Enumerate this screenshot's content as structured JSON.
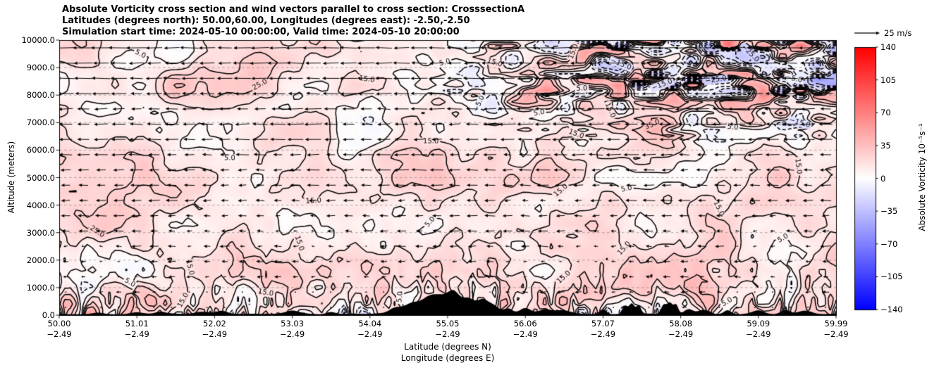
{
  "header": {
    "title_line1": "Absolute Vorticity cross section and wind vectors parallel to cross section: CrosssectionA",
    "title_line2": "Latitudes (degrees north): 50.00,60.00, Longitudes (degrees east): -2.50,-2.50",
    "title_line3": "Simulation start time: 2024-05-10 00:00:00, Valid time: 2024-05-10 20:00:00"
  },
  "chart_data": {
    "type": "heatmap",
    "subtype": "vertical-cross-section with filled vorticity shading, labeled contour lines and wind vectors",
    "title": "Absolute Vorticity cross section and wind vectors parallel to cross section: CrosssectionA",
    "xlabel_line1": "Latitude (degrees N)",
    "xlabel_line2": "Longitude (degrees E)",
    "ylabel": "Altitude (meters)",
    "x_range_lat": [
      50.0,
      59.99
    ],
    "y_range_m": [
      0,
      10000
    ],
    "grid": "horizontal dashed gray gridlines at each 1000 m",
    "x_ticks": [
      {
        "lat": "50.00",
        "lon": "−2.49"
      },
      {
        "lat": "51.01",
        "lon": "−2.49"
      },
      {
        "lat": "52.02",
        "lon": "−2.49"
      },
      {
        "lat": "53.03",
        "lon": "−2.49"
      },
      {
        "lat": "54.04",
        "lon": "−2.49"
      },
      {
        "lat": "55.05",
        "lon": "−2.49"
      },
      {
        "lat": "56.06",
        "lon": "−2.49"
      },
      {
        "lat": "57.07",
        "lon": "−2.49"
      },
      {
        "lat": "58.08",
        "lon": "−2.49"
      },
      {
        "lat": "59.09",
        "lon": "−2.49"
      },
      {
        "lat": "59.99",
        "lon": "−2.49"
      }
    ],
    "y_ticks": [
      "0.0",
      "1000.0",
      "2000.0",
      "3000.0",
      "4000.0",
      "5000.0",
      "6000.0",
      "7000.0",
      "8000.0",
      "9000.0",
      "10000.0"
    ],
    "colorbar": {
      "label": "Absolute Vorticity 10⁻⁵s⁻¹",
      "ticks": [
        "140",
        "105",
        "70",
        "35",
        "0",
        "−35",
        "−70",
        "−105",
        "−140"
      ],
      "tick_values": [
        140,
        105,
        70,
        35,
        0,
        -35,
        -70,
        -105,
        -140
      ],
      "vmin": -140,
      "vmax": 140,
      "colormap": "blue-white-red",
      "color_neg": "#0000ff",
      "color_zero": "#ffffff",
      "color_pos": "#ff0000",
      "position": "right"
    },
    "quiver_key": {
      "label": "25 m/s",
      "speed": 25
    },
    "contour_levels": [
      {
        "value": -35,
        "label": "−35.0",
        "style": "dashed",
        "labels_count": 1
      },
      {
        "value": -25,
        "label": "−25.0",
        "style": "dashed",
        "labels_count": 2
      },
      {
        "value": -15,
        "label": "−15.0",
        "style": "dashed",
        "labels_count": 4
      },
      {
        "value": -5,
        "label": "−5.0",
        "style": "dashed",
        "labels_count": 8
      },
      {
        "value": 5,
        "label": "5.0",
        "style": "solid",
        "labels_count": 22
      },
      {
        "value": 15,
        "label": "15.0",
        "style": "solid",
        "labels_count": 26
      },
      {
        "value": 25,
        "label": "25.0",
        "style": "solid",
        "labels_count": 8
      },
      {
        "value": 35,
        "label": "35.0",
        "style": "solid",
        "labels_count": 4
      }
    ],
    "field_overview": {
      "units": "10^-5 s^-1",
      "typical_values": "mostly 0 to 35 (pale pink shading) across the section",
      "high_variability_zones": "near the surface (below ~1500 m) across the whole section, and in the upper-right region (above ~7000 m, north of ~56 N) with dense tangled contours",
      "negative_patches": "scattered light-blue pockets near the surface and in the upper-right",
      "terrain": "black filled orography along the bottom, tallest ~600-800 m between ~54 N and ~55.6 N, narrow peaks near ~57.1 N"
    },
    "wind_vectors": {
      "direction": "predominantly toward lower latitude (arrows point left)",
      "magnitude": "near 0 m/s close to the surface, increasing to roughly 20-25 m/s aloft",
      "reference": "25 m/s"
    }
  }
}
